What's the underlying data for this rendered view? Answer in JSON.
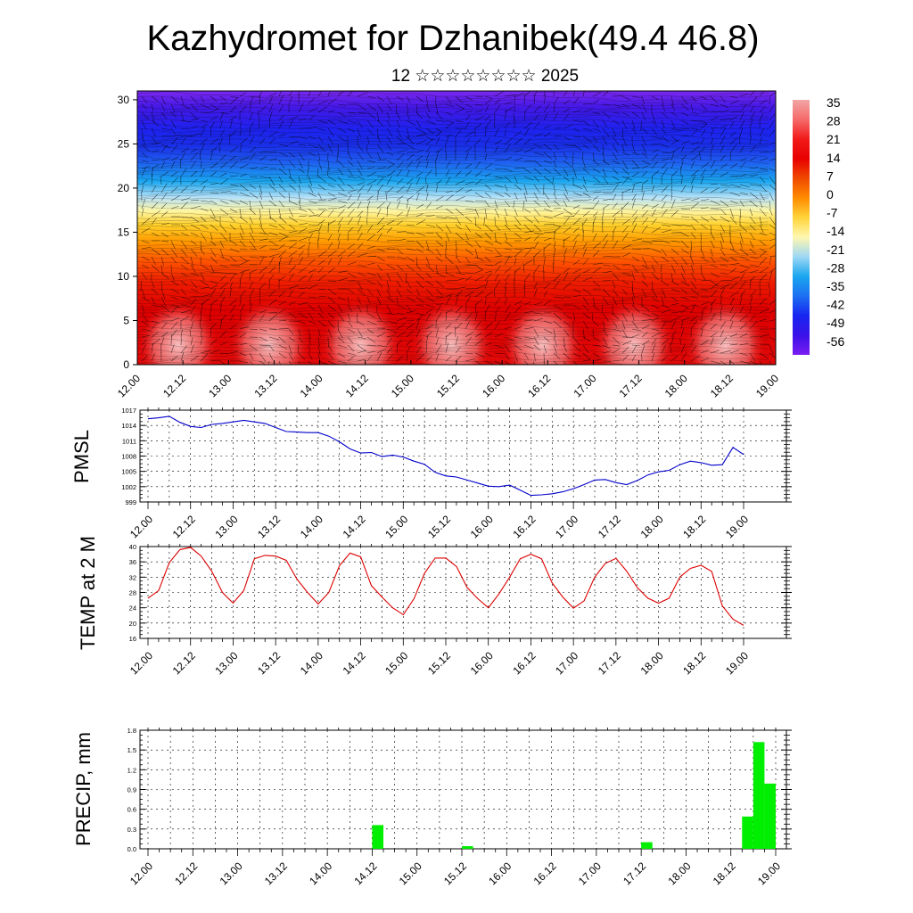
{
  "header": {
    "title": "Kazhydromet for Dzhanibek(49.4 46.8)",
    "subtitle": "12 ☆☆☆☆☆☆☆☆ 2025"
  },
  "time_labels": [
    "12.00",
    "12.12",
    "13.00",
    "13.12",
    "14.00",
    "14.12",
    "15.00",
    "15.12",
    "16.00",
    "16.12",
    "17.00",
    "17.12",
    "18.00",
    "18.12",
    "19.00"
  ],
  "chart_data": [
    {
      "type": "heatmap",
      "y_ticks": [
        0,
        5,
        10,
        15,
        20,
        25,
        30
      ],
      "ylim": [
        0,
        31
      ],
      "colorbar": {
        "labels": [
          "35",
          "28",
          "21",
          "14",
          "7",
          "0",
          "-7",
          "-14",
          "-21",
          "-28",
          "-35",
          "-42",
          "-49",
          "-56"
        ],
        "colors": [
          "#f2a6a6",
          "#f56a6a",
          "#f21a1a",
          "#e80000",
          "#f04a00",
          "#ff8c00",
          "#ffd43a",
          "#fff7b0",
          "#9ed8f5",
          "#1aa6ef",
          "#1c6ff2",
          "#1826f0",
          "#3a12e8",
          "#7a1cf2"
        ]
      },
      "bands": [
        {
          "stop": 0.0,
          "color": "#7a28ee"
        },
        {
          "stop": 0.06,
          "color": "#4418e6"
        },
        {
          "stop": 0.14,
          "color": "#1e22ee"
        },
        {
          "stop": 0.2,
          "color": "#1a2fe8"
        },
        {
          "stop": 0.26,
          "color": "#1f5ff0"
        },
        {
          "stop": 0.33,
          "color": "#1aa6ef"
        },
        {
          "stop": 0.39,
          "color": "#b8e2f7"
        },
        {
          "stop": 0.44,
          "color": "#fff5a0"
        },
        {
          "stop": 0.49,
          "color": "#ffd02a"
        },
        {
          "stop": 0.55,
          "color": "#ff9a00"
        },
        {
          "stop": 0.62,
          "color": "#ff5500"
        },
        {
          "stop": 0.7,
          "color": "#ee1c00"
        },
        {
          "stop": 0.8,
          "color": "#dd0000"
        },
        {
          "stop": 1.0,
          "color": "#e00808"
        }
      ]
    },
    {
      "type": "line",
      "ylabel": "PMSL",
      "y_ticks": [
        999,
        1002,
        1005,
        1008,
        1011,
        1014,
        1017
      ],
      "ylim": [
        999,
        1017
      ],
      "color": "#0000cc",
      "x": [
        0,
        3,
        6,
        9,
        12,
        15,
        18,
        21,
        24,
        27,
        30,
        33,
        36,
        39,
        42,
        45,
        48,
        51,
        54,
        57,
        60,
        63,
        66,
        69,
        72,
        75,
        78,
        81,
        84,
        87,
        90,
        93,
        96,
        99,
        102,
        105,
        108,
        111,
        114,
        117,
        120,
        123,
        126,
        129,
        132,
        135,
        138,
        141,
        144,
        147,
        150,
        153,
        156,
        159,
        162,
        165,
        168
      ],
      "values": [
        1015.3,
        1015.5,
        1015.8,
        1014.6,
        1013.8,
        1013.6,
        1014.2,
        1014.4,
        1014.7,
        1015.0,
        1014.7,
        1014.4,
        1013.6,
        1012.8,
        1012.7,
        1012.6,
        1012.6,
        1011.9,
        1010.8,
        1009.4,
        1008.6,
        1008.7,
        1007.9,
        1008.2,
        1007.8,
        1007.0,
        1006.4,
        1004.8,
        1004.1,
        1003.9,
        1003.3,
        1002.7,
        1002.1,
        1002.0,
        1002.3,
        1001.3,
        1000.3,
        1000.4,
        1000.6,
        1001.0,
        1001.6,
        1002.4,
        1003.3,
        1003.4,
        1002.8,
        1002.4,
        1003.2,
        1004.3,
        1004.9,
        1005.2,
        1006.3,
        1007.0,
        1006.7,
        1006.2,
        1006.3,
        1009.7,
        1008.3
      ],
      "x_end": 168
    },
    {
      "type": "line",
      "ylabel": "TEMP at 2 M",
      "y_ticks": [
        16,
        20,
        24,
        28,
        32,
        36,
        40
      ],
      "ylim": [
        16,
        40
      ],
      "color": "#dd0000",
      "x": [
        0,
        3,
        6,
        9,
        12,
        15,
        18,
        21,
        24,
        27,
        30,
        33,
        36,
        39,
        42,
        45,
        48,
        51,
        54,
        57,
        60,
        63,
        66,
        69,
        72,
        75,
        78,
        81,
        84,
        87,
        90,
        93,
        96,
        99,
        102,
        105,
        108,
        111,
        114,
        117,
        120,
        123,
        126,
        129,
        132,
        135,
        138,
        141,
        144,
        147,
        150,
        153,
        156,
        159,
        162,
        165,
        168
      ],
      "values": [
        26.5,
        28.5,
        35.8,
        39.2,
        39.8,
        37.5,
        33.5,
        28.0,
        25.2,
        28.5,
        36.8,
        37.7,
        37.5,
        36.4,
        31.5,
        28.0,
        25.0,
        28.0,
        35.0,
        38.3,
        37.3,
        29.8,
        26.8,
        24.0,
        22.2,
        26.3,
        33.0,
        37.0,
        37.0,
        34.8,
        29.3,
        26.4,
        24.0,
        27.6,
        32.0,
        36.8,
        38.0,
        36.8,
        30.5,
        26.8,
        23.9,
        25.8,
        32.0,
        35.6,
        36.9,
        33.6,
        29.3,
        26.5,
        25.2,
        26.5,
        32.0,
        34.3,
        35.1,
        33.5,
        24.5,
        21.0,
        19.4
      ]
    },
    {
      "type": "bar",
      "ylabel": "PRECIP, mm",
      "y_ticks": [
        "0.0",
        "0.3",
        "0.6",
        "0.9",
        "1.2",
        "1.5",
        "1.8"
      ],
      "ylim": [
        0,
        1.8
      ],
      "color": "#00ee00",
      "bars": [
        {
          "x0": 60,
          "x1": 63,
          "value": 0.36
        },
        {
          "x0": 84,
          "x1": 87,
          "value": 0.04
        },
        {
          "x0": 132,
          "x1": 135,
          "value": 0.1
        },
        {
          "x0": 159,
          "x1": 162,
          "value": 0.49
        },
        {
          "x0": 162,
          "x1": 165,
          "value": 1.62
        },
        {
          "x0": 165,
          "x1": 168,
          "value": 0.99
        }
      ]
    }
  ]
}
